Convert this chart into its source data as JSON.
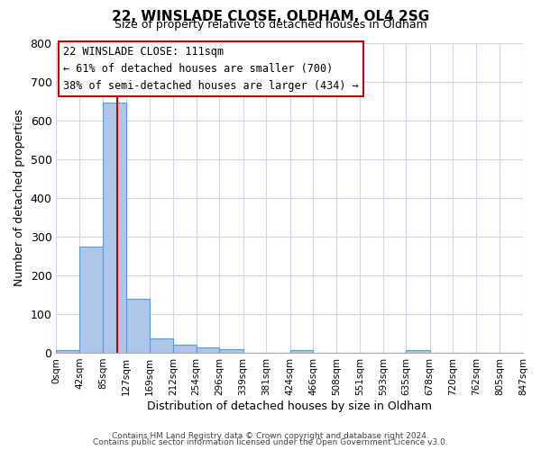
{
  "title_line1": "22, WINSLADE CLOSE, OLDHAM, OL4 2SG",
  "title_line2": "Size of property relative to detached houses in Oldham",
  "xlabel": "Distribution of detached houses by size in Oldham",
  "ylabel": "Number of detached properties",
  "bin_edges": [
    0,
    42,
    85,
    127,
    169,
    212,
    254,
    296,
    339,
    381,
    424,
    466,
    508,
    551,
    593,
    635,
    678,
    720,
    762,
    805,
    847
  ],
  "bar_heights": [
    8,
    275,
    645,
    140,
    38,
    20,
    13,
    9,
    0,
    0,
    8,
    0,
    0,
    0,
    0,
    8,
    0,
    0,
    0,
    0
  ],
  "bar_color": "#aec6e8",
  "bar_edge_color": "#5b9bd5",
  "vline_color": "#cc0000",
  "vline_x": 111,
  "annotation_line1": "22 WINSLADE CLOSE: 111sqm",
  "annotation_line2": "← 61% of detached houses are smaller (700)",
  "annotation_line3": "38% of semi-detached houses are larger (434) →",
  "box_edge_color": "#cc0000",
  "ylim": [
    0,
    800
  ],
  "yticks": [
    0,
    100,
    200,
    300,
    400,
    500,
    600,
    700,
    800
  ],
  "tick_labels": [
    "0sqm",
    "42sqm",
    "85sqm",
    "127sqm",
    "169sqm",
    "212sqm",
    "254sqm",
    "296sqm",
    "339sqm",
    "381sqm",
    "424sqm",
    "466sqm",
    "508sqm",
    "551sqm",
    "593sqm",
    "635sqm",
    "678sqm",
    "720sqm",
    "762sqm",
    "805sqm",
    "847sqm"
  ],
  "footer_line1": "Contains HM Land Registry data © Crown copyright and database right 2024.",
  "footer_line2": "Contains public sector information licensed under the Open Government Licence v3.0.",
  "background_color": "#ffffff",
  "grid_color": "#d0d8e8",
  "title_fontsize": 11,
  "subtitle_fontsize": 9,
  "ylabel_fontsize": 9,
  "xlabel_fontsize": 9,
  "annotation_fontsize": 8.5,
  "tick_fontsize": 7.5,
  "footer_fontsize": 6.5
}
